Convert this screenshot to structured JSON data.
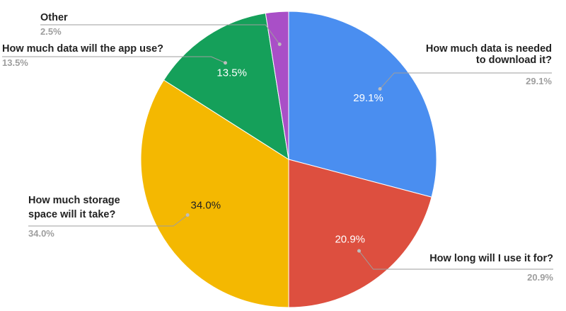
{
  "chart_data": {
    "type": "pie",
    "title": "",
    "legend": "none",
    "slices": [
      {
        "label": [
          "How much data is needed",
          "to download it?"
        ],
        "value": 29.1,
        "display": "29.1%",
        "color": "#4a8ef0",
        "text_color": "#ffffff"
      },
      {
        "label": [
          "How long will I use it for?"
        ],
        "value": 20.9,
        "display": "20.9%",
        "color": "#dd4f3f",
        "text_color": "#ffffff"
      },
      {
        "label": [
          "How much storage",
          "space will it take?"
        ],
        "value": 34.0,
        "display": "34.0%",
        "color": "#f4b801",
        "text_color": "#222222"
      },
      {
        "label": [
          "How much data will the app use?"
        ],
        "value": 13.5,
        "display": "13.5%",
        "color": "#15a05a",
        "text_color": "#ffffff"
      },
      {
        "label": [
          "Other"
        ],
        "value": 2.5,
        "display": "2.5%",
        "color": "#a94fc7",
        "text_color": "#ffffff"
      }
    ]
  }
}
